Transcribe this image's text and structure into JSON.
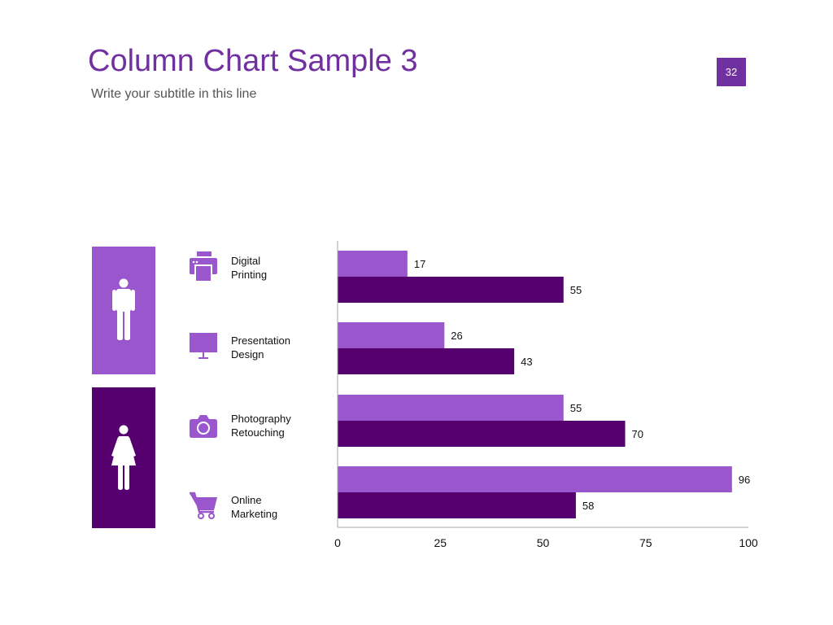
{
  "slide": {
    "title": "Column Chart Sample 3",
    "subtitle": "Write your subtitle in this line",
    "page_number": "32"
  },
  "colors": {
    "accent": "#7030a0",
    "light_series": "#9a57cd",
    "dark_series": "#55006e"
  },
  "gender_icons": [
    {
      "icon": "male-icon",
      "color": "#9a57cd"
    },
    {
      "icon": "female-icon",
      "color": "#55006e"
    }
  ],
  "categories": [
    {
      "label": "Digital\nPrinting",
      "icon": "printer-icon"
    },
    {
      "label": "Presentation\nDesign",
      "icon": "monitor-icon"
    },
    {
      "label": "Photography\nRetouching",
      "icon": "camera-icon"
    },
    {
      "label": "Online\nMarketing",
      "icon": "shopping-cart-icon"
    }
  ],
  "chart_data": {
    "type": "bar",
    "orientation": "horizontal",
    "categories": [
      "Digital Printing",
      "Presentation Design",
      "Photography Retouching",
      "Online Marketing"
    ],
    "series": [
      {
        "values": [
          17,
          26,
          55,
          96
        ],
        "color": "#9a57cd"
      },
      {
        "values": [
          55,
          43,
          70,
          58
        ],
        "color": "#55006e"
      }
    ],
    "xlim": [
      0,
      100
    ],
    "xticks": [
      "0",
      "25",
      "50",
      "75",
      "100"
    ],
    "data_labels": true,
    "grid": false
  }
}
